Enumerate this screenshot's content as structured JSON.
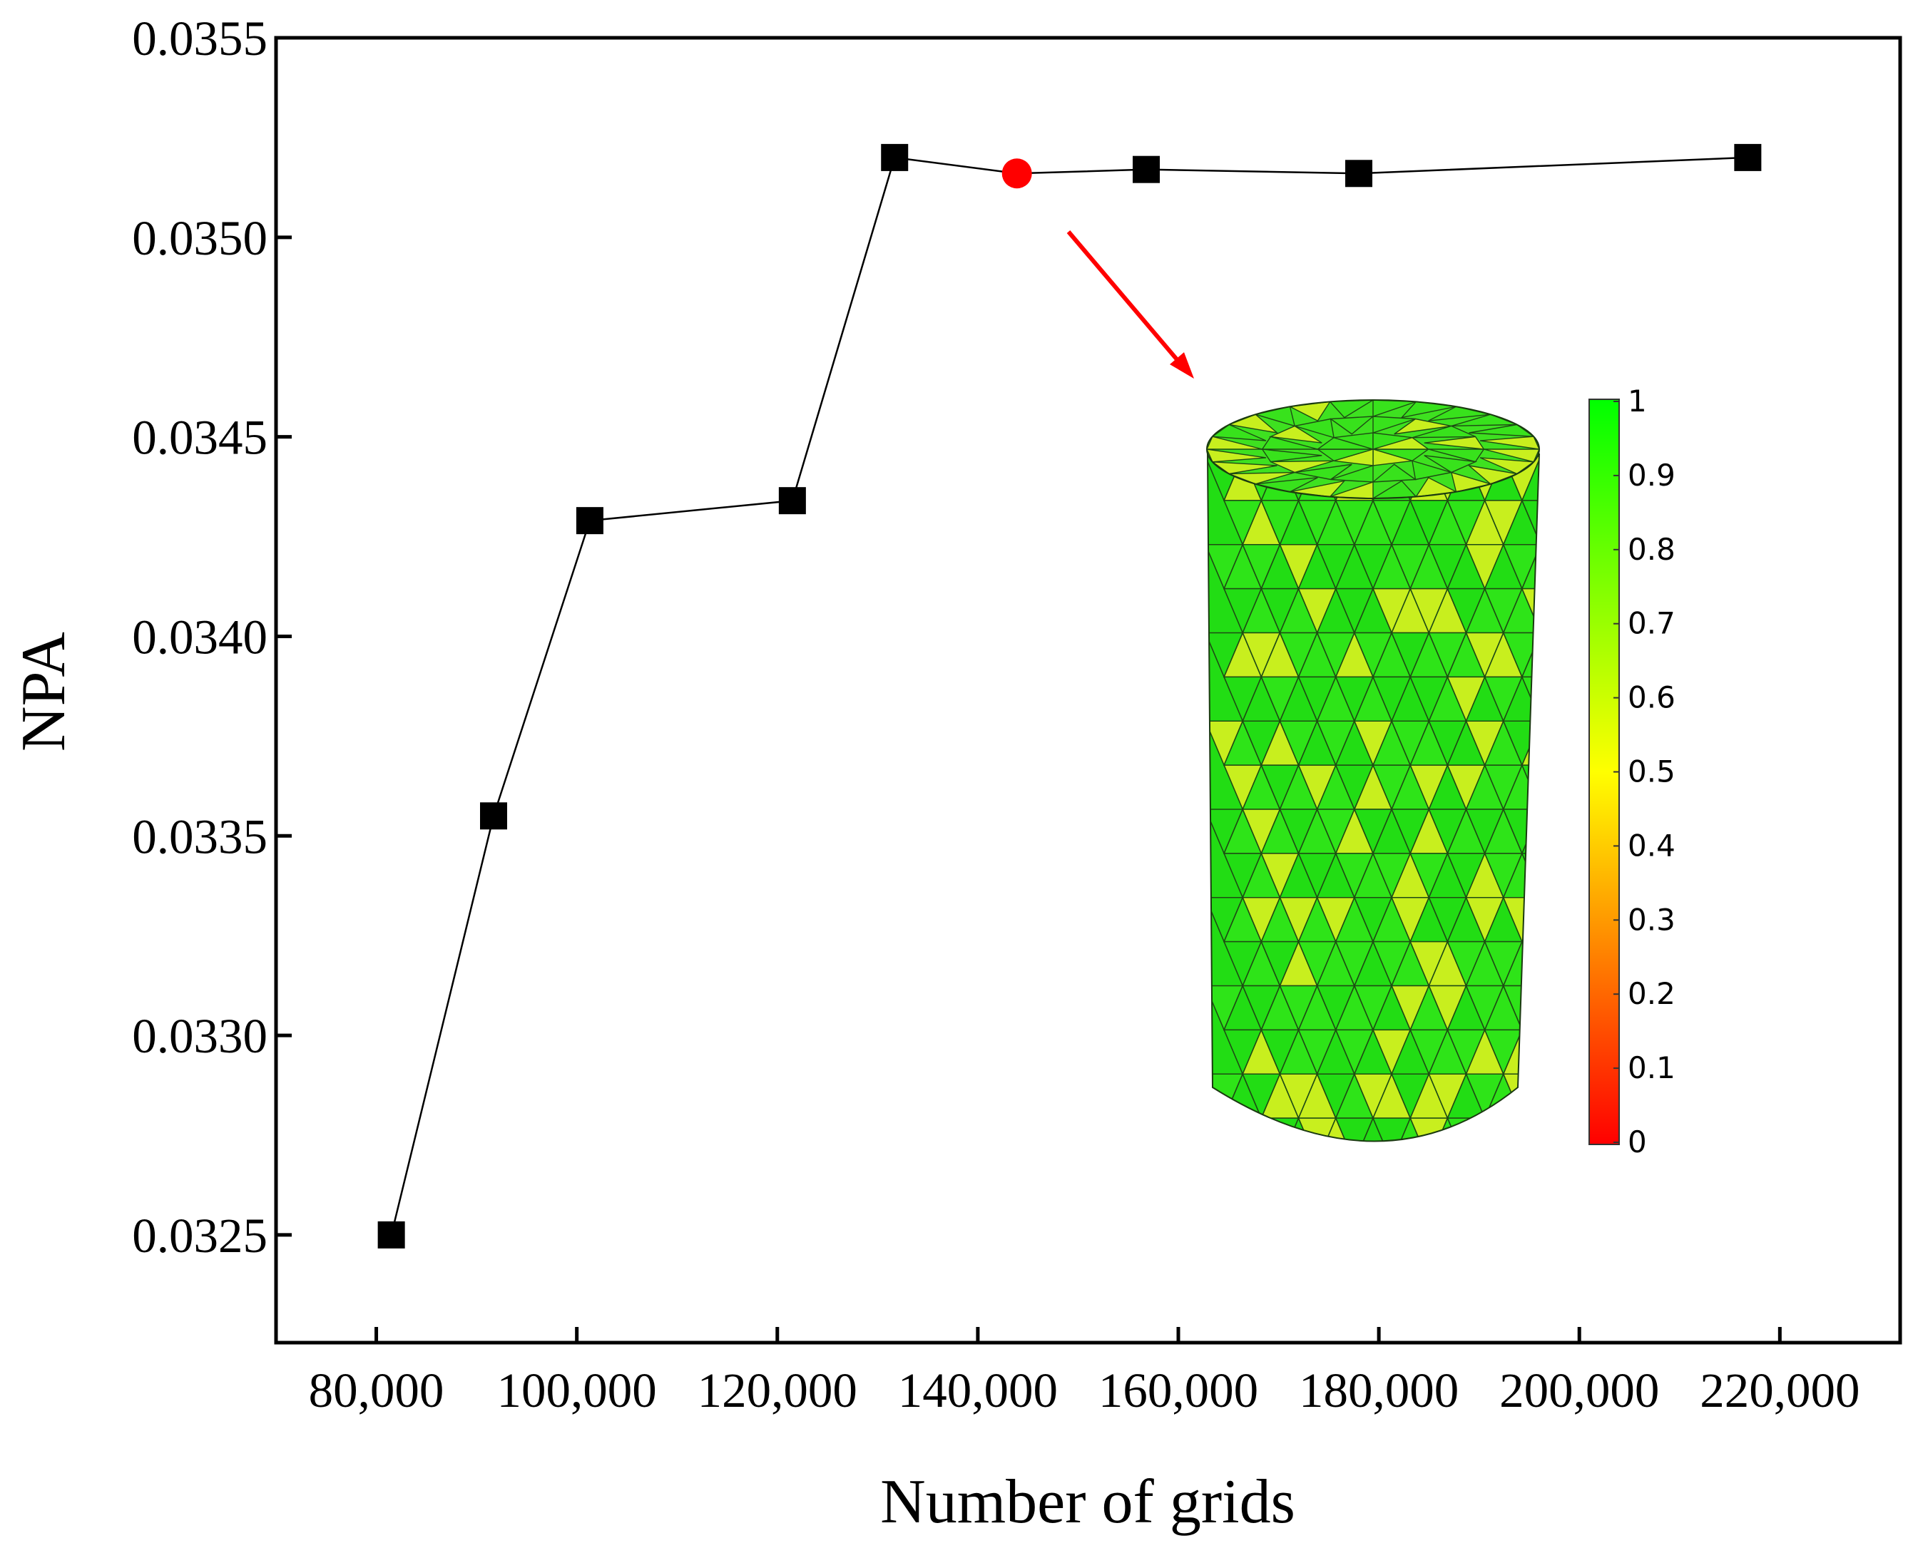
{
  "chart_data": {
    "type": "line",
    "title": "",
    "xlabel": "Number of grids",
    "ylabel": "NPA",
    "xlim": [
      70000,
      232000
    ],
    "ylim": [
      0.03223,
      0.0355
    ],
    "x_ticks": [
      80000,
      100000,
      120000,
      140000,
      160000,
      180000,
      200000,
      220000
    ],
    "x_tick_labels": [
      "80,000",
      "100,000",
      "120,000",
      "140,000",
      "160,000",
      "180,000",
      "200,000",
      "220,000"
    ],
    "y_ticks": [
      0.0325,
      0.033,
      0.0335,
      0.034,
      0.0345,
      0.035,
      0.0355
    ],
    "y_tick_labels": [
      "0.0325",
      "0.0330",
      "0.0335",
      "0.0340",
      "0.0345",
      "0.0350",
      "0.0355"
    ],
    "grid": false,
    "series": [
      {
        "name": "NPA",
        "x": [
          81500,
          91700,
          101300,
          121500,
          131700,
          143900,
          156800,
          178000,
          216800
        ],
        "y": [
          0.0325,
          0.03355,
          0.03429,
          0.03434,
          0.0352,
          0.03516,
          0.03517,
          0.03516,
          0.0352
        ],
        "highlight_index": 5
      }
    ],
    "colors": {
      "line": "#000000",
      "marker": "#000000",
      "highlight": "#ff0000",
      "arrow": "#ff0000",
      "mesh_green": "#22dd14",
      "mesh_yellow": "#c8ef1e"
    },
    "inset": {
      "description_icon": "cylinder-mesh-icon",
      "colorbar_ticks": [
        "1",
        "0.9",
        "0.8",
        "0.7",
        "0.6",
        "0.5",
        "0.4",
        "0.3",
        "0.2",
        "0.1",
        "0"
      ],
      "colorbar_stops": [
        "#00ff00",
        "#ffff00",
        "#ff0000"
      ]
    }
  }
}
